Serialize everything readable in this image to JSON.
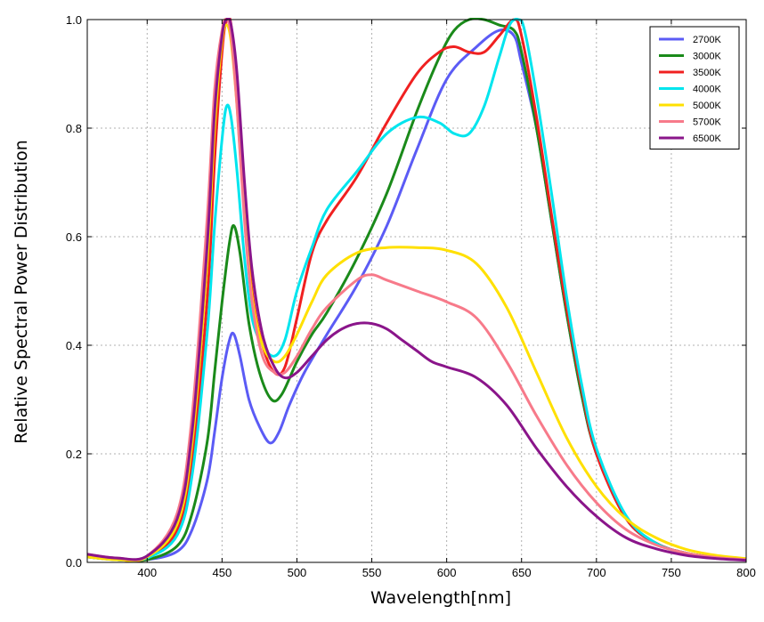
{
  "chart_data": {
    "type": "line",
    "title": "",
    "xlabel": "Wavelength[nm]",
    "ylabel": "Relative Spectral Power Distribution",
    "xlim": [
      360,
      800
    ],
    "ylim": [
      0.0,
      1.0
    ],
    "xticks": [
      400,
      450,
      500,
      550,
      600,
      650,
      700,
      750,
      800
    ],
    "xtick_labels": [
      "400",
      "450",
      "500",
      "550",
      "600",
      "650",
      "700",
      "750",
      "800"
    ],
    "yticks": [
      0.0,
      0.2,
      0.4,
      0.6,
      0.8,
      1.0
    ],
    "ytick_labels": [
      "0.0",
      "0.2",
      "0.4",
      "0.6",
      "0.8",
      "1.0"
    ],
    "grid": true,
    "legend_position": "top-right",
    "series": [
      {
        "name": "2700K",
        "color": "#5b5bf5",
        "x": [
          360,
          380,
          400,
          420,
          430,
          440,
          445,
          450,
          455,
          458,
          462,
          468,
          475,
          482,
          488,
          495,
          505,
          520,
          540,
          560,
          580,
          600,
          620,
          635,
          645,
          650,
          660,
          670,
          680,
          690,
          700,
          720,
          740,
          760,
          780,
          800
        ],
        "y": [
          0.01,
          0.005,
          0.005,
          0.02,
          0.06,
          0.15,
          0.24,
          0.34,
          0.41,
          0.42,
          0.38,
          0.3,
          0.25,
          0.22,
          0.24,
          0.29,
          0.35,
          0.42,
          0.51,
          0.62,
          0.76,
          0.89,
          0.95,
          0.98,
          0.97,
          0.92,
          0.8,
          0.63,
          0.46,
          0.31,
          0.2,
          0.08,
          0.035,
          0.017,
          0.009,
          0.005
        ]
      },
      {
        "name": "3000K",
        "color": "#1a8a1a",
        "x": [
          360,
          380,
          400,
          420,
          430,
          440,
          445,
          450,
          455,
          458,
          462,
          468,
          475,
          483,
          490,
          500,
          510,
          520,
          540,
          560,
          580,
          595,
          605,
          615,
          625,
          635,
          645,
          650,
          660,
          670,
          680,
          690,
          700,
          720,
          740,
          760,
          780,
          800
        ],
        "y": [
          0.01,
          0.005,
          0.005,
          0.03,
          0.09,
          0.22,
          0.35,
          0.48,
          0.59,
          0.62,
          0.57,
          0.44,
          0.35,
          0.3,
          0.31,
          0.37,
          0.42,
          0.46,
          0.56,
          0.68,
          0.83,
          0.93,
          0.98,
          1.0,
          1.0,
          0.99,
          0.98,
          0.94,
          0.8,
          0.63,
          0.46,
          0.31,
          0.2,
          0.08,
          0.035,
          0.017,
          0.009,
          0.005
        ]
      },
      {
        "name": "3500K",
        "color": "#f02020",
        "x": [
          360,
          380,
          400,
          420,
          430,
          440,
          445,
          450,
          453,
          456,
          460,
          465,
          470,
          477,
          485,
          492,
          500,
          510,
          520,
          540,
          560,
          580,
          595,
          605,
          615,
          625,
          635,
          645,
          650,
          660,
          670,
          680,
          690,
          700,
          720,
          740,
          760,
          780,
          800
        ],
        "y": [
          0.01,
          0.005,
          0.008,
          0.06,
          0.19,
          0.48,
          0.74,
          0.94,
          1.0,
          0.99,
          0.86,
          0.66,
          0.5,
          0.4,
          0.35,
          0.36,
          0.45,
          0.57,
          0.63,
          0.71,
          0.81,
          0.9,
          0.94,
          0.95,
          0.94,
          0.94,
          0.97,
          1.0,
          0.97,
          0.82,
          0.64,
          0.47,
          0.32,
          0.2,
          0.08,
          0.035,
          0.017,
          0.009,
          0.005
        ]
      },
      {
        "name": "4000K",
        "color": "#00e5ee",
        "x": [
          360,
          380,
          400,
          420,
          430,
          440,
          445,
          450,
          453,
          456,
          460,
          465,
          470,
          477,
          485,
          492,
          500,
          510,
          520,
          540,
          560,
          580,
          595,
          605,
          615,
          625,
          635,
          642,
          648,
          652,
          660,
          670,
          680,
          690,
          700,
          720,
          740,
          760,
          780,
          800
        ],
        "y": [
          0.01,
          0.005,
          0.008,
          0.05,
          0.16,
          0.42,
          0.62,
          0.78,
          0.84,
          0.82,
          0.72,
          0.56,
          0.45,
          0.4,
          0.38,
          0.41,
          0.5,
          0.58,
          0.65,
          0.72,
          0.79,
          0.82,
          0.81,
          0.79,
          0.79,
          0.84,
          0.93,
          0.99,
          1.0,
          0.98,
          0.86,
          0.68,
          0.49,
          0.33,
          0.21,
          0.085,
          0.035,
          0.017,
          0.009,
          0.005
        ]
      },
      {
        "name": "5000K",
        "color": "#ffe000",
        "x": [
          360,
          380,
          400,
          420,
          430,
          440,
          445,
          450,
          453,
          456,
          460,
          465,
          470,
          477,
          485,
          492,
          500,
          510,
          520,
          540,
          560,
          580,
          600,
          620,
          640,
          660,
          680,
          700,
          720,
          740,
          760,
          780,
          800
        ],
        "y": [
          0.01,
          0.005,
          0.01,
          0.07,
          0.22,
          0.55,
          0.8,
          0.96,
          0.99,
          0.96,
          0.84,
          0.64,
          0.49,
          0.4,
          0.37,
          0.38,
          0.42,
          0.48,
          0.53,
          0.57,
          0.58,
          0.58,
          0.575,
          0.55,
          0.47,
          0.35,
          0.23,
          0.14,
          0.08,
          0.045,
          0.024,
          0.013,
          0.007
        ]
      },
      {
        "name": "5700K",
        "color": "#f77a8a",
        "x": [
          360,
          380,
          400,
          420,
          430,
          440,
          445,
          450,
          453,
          456,
          460,
          465,
          470,
          477,
          485,
          492,
          500,
          510,
          520,
          540,
          550,
          560,
          580,
          600,
          620,
          640,
          660,
          680,
          700,
          720,
          740,
          760,
          780,
          800
        ],
        "y": [
          0.015,
          0.008,
          0.012,
          0.09,
          0.27,
          0.63,
          0.87,
          0.98,
          1.0,
          0.97,
          0.84,
          0.63,
          0.48,
          0.38,
          0.35,
          0.35,
          0.38,
          0.43,
          0.47,
          0.52,
          0.53,
          0.52,
          0.5,
          0.48,
          0.45,
          0.37,
          0.27,
          0.18,
          0.11,
          0.06,
          0.032,
          0.017,
          0.009,
          0.005
        ]
      },
      {
        "name": "6500K",
        "color": "#8a158a",
        "x": [
          360,
          380,
          400,
          420,
          430,
          440,
          445,
          450,
          453,
          456,
          460,
          465,
          470,
          477,
          485,
          492,
          500,
          510,
          520,
          530,
          540,
          550,
          560,
          570,
          580,
          590,
          600,
          620,
          640,
          660,
          680,
          700,
          720,
          740,
          760,
          780,
          800
        ],
        "y": [
          0.015,
          0.008,
          0.012,
          0.08,
          0.24,
          0.58,
          0.83,
          0.97,
          1.0,
          0.99,
          0.9,
          0.7,
          0.54,
          0.42,
          0.36,
          0.34,
          0.35,
          0.38,
          0.41,
          0.43,
          0.44,
          0.44,
          0.43,
          0.41,
          0.39,
          0.37,
          0.36,
          0.34,
          0.29,
          0.21,
          0.14,
          0.085,
          0.045,
          0.025,
          0.013,
          0.007,
          0.004
        ]
      }
    ]
  }
}
